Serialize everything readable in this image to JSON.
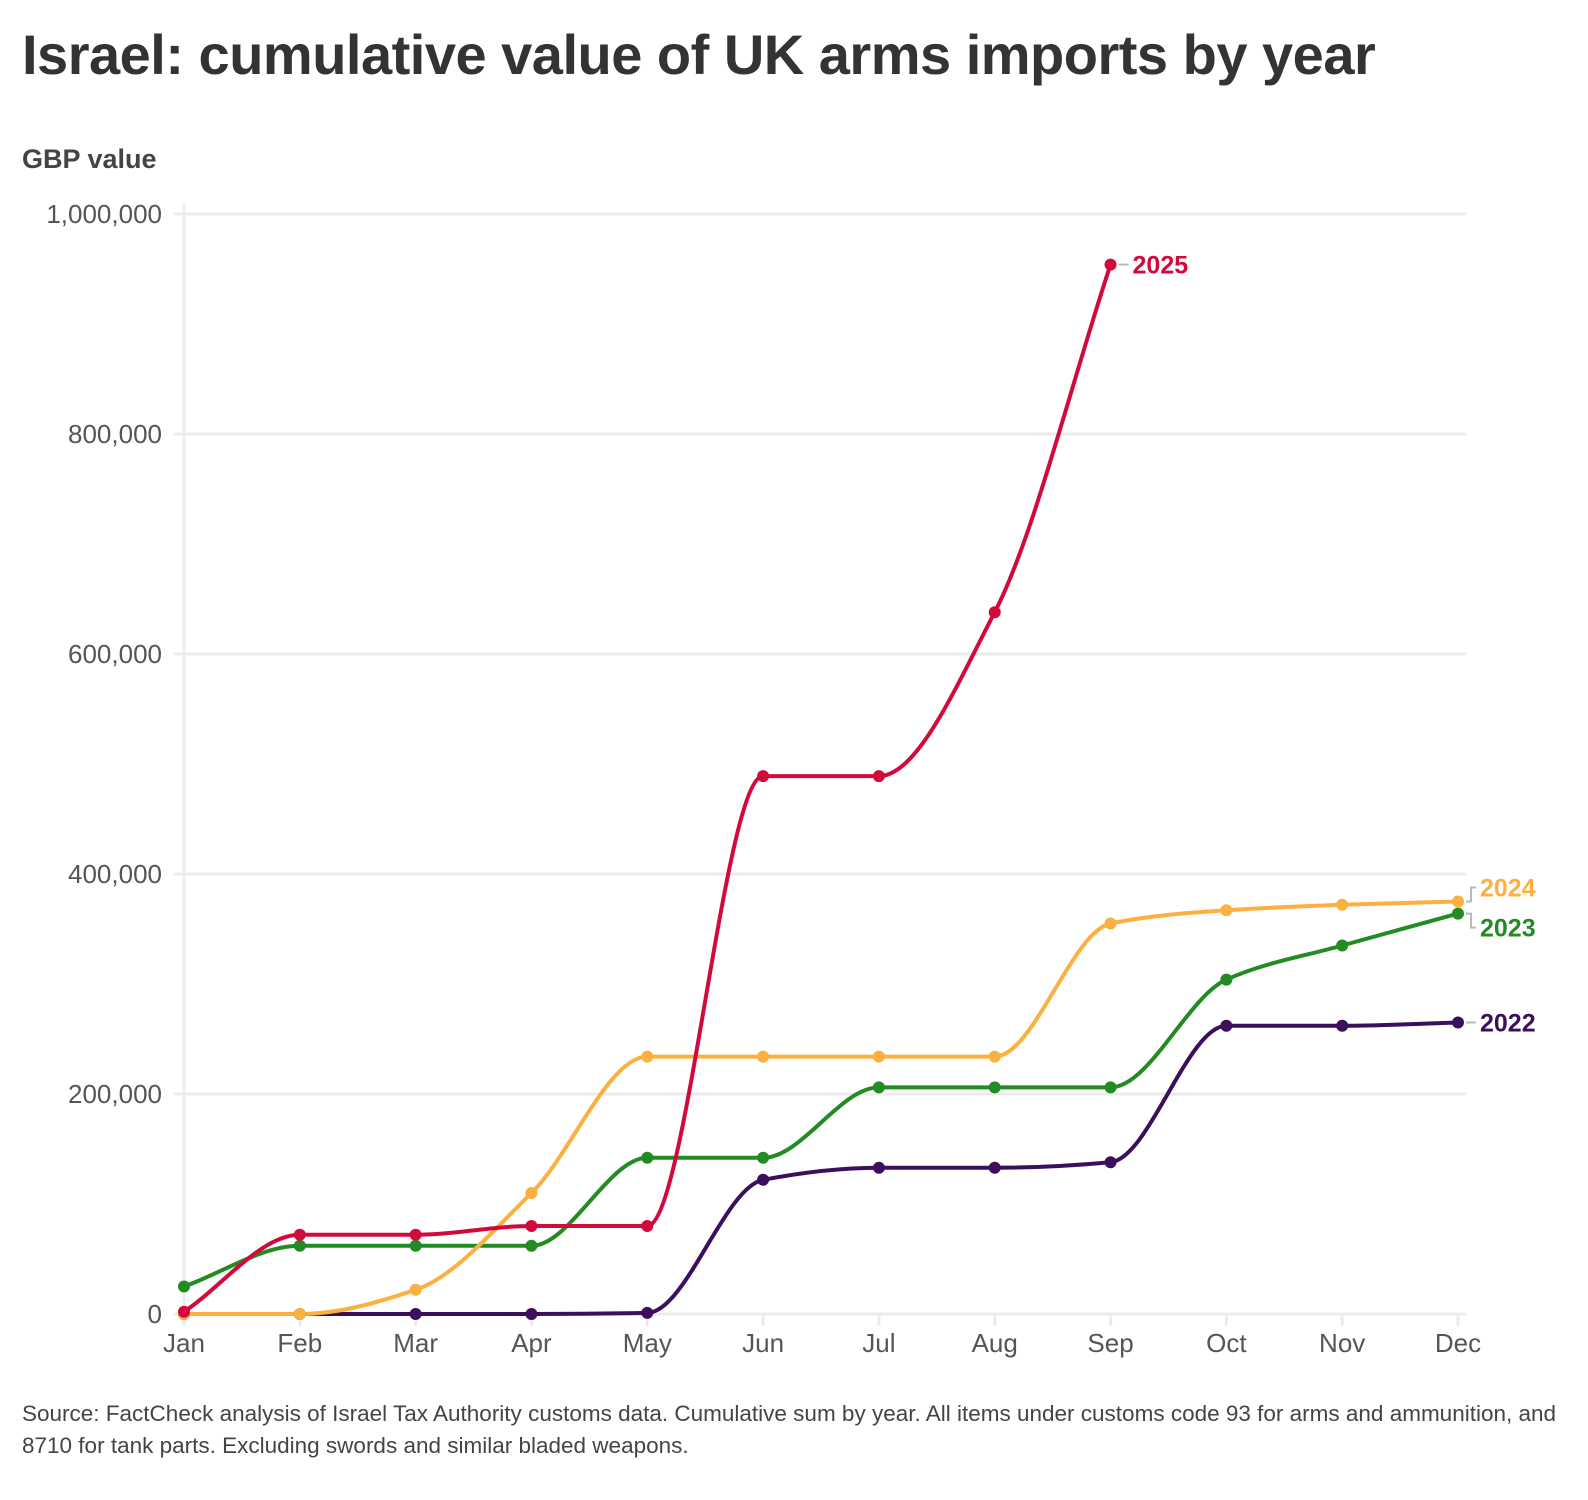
{
  "title": "Israel: cumulative value of UK arms imports by year",
  "footer": "Source: FactCheck analysis of Israel Tax Authority customs data. Cumulative sum by year. All items under customs code 93 for arms and ammunition, and 8710 for tank parts. Excluding swords and similar bladed weapons.",
  "chart_data": {
    "type": "line",
    "title": "Israel: cumulative value of UK arms imports by year",
    "xlabel": "",
    "ylabel": "GBP value",
    "ylim": [
      0,
      1000000
    ],
    "grid": true,
    "legend": "direct labels at line ends (right)",
    "x": [
      "Jan",
      "Feb",
      "Mar",
      "Apr",
      "May",
      "Jun",
      "Jul",
      "Aug",
      "Sep",
      "Oct",
      "Nov",
      "Dec"
    ],
    "yticks": [
      {
        "value": 0,
        "label": "0"
      },
      {
        "value": 200000,
        "label": "200,000"
      },
      {
        "value": 400000,
        "label": "400,000"
      },
      {
        "value": 600000,
        "label": "600,000"
      },
      {
        "value": 800000,
        "label": "800,000"
      },
      {
        "value": 1000000,
        "label": "1,000,000"
      }
    ],
    "series": [
      {
        "name": "2022",
        "color": "#3b0f5c",
        "values": [
          0,
          0,
          0,
          0,
          1000,
          122000,
          133000,
          133000,
          138000,
          262000,
          262000,
          265000
        ]
      },
      {
        "name": "2023",
        "color": "#228b22",
        "values": [
          25000,
          62000,
          62000,
          62000,
          142000,
          142000,
          206000,
          206000,
          206000,
          304000,
          335000,
          364000
        ]
      },
      {
        "name": "2024",
        "color": "#fbb040",
        "values": [
          0,
          0,
          22000,
          110000,
          234000,
          234000,
          234000,
          234000,
          355000,
          367000,
          372000,
          375000
        ]
      },
      {
        "name": "2025",
        "color": "#d20a3c",
        "values": [
          2000,
          72000,
          72000,
          80000,
          80000,
          489000,
          489000,
          638000,
          954000
        ]
      }
    ]
  }
}
